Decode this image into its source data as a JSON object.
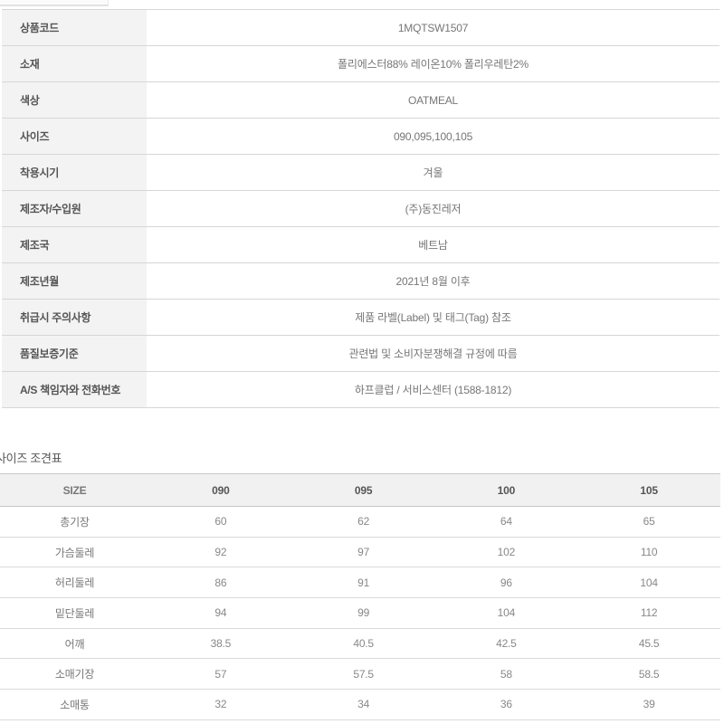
{
  "spec_table": {
    "rows": [
      {
        "label": "상품코드",
        "value": "1MQTSW1507"
      },
      {
        "label": "소재",
        "value": "폴리에스터88% 레이온10% 폴리우레탄2%"
      },
      {
        "label": "색상",
        "value": "OATMEAL"
      },
      {
        "label": "사이즈",
        "value": "090,095,100,105"
      },
      {
        "label": "착용시기",
        "value": "겨울"
      },
      {
        "label": "제조자/수입원",
        "value": "(주)동진레저"
      },
      {
        "label": "제조국",
        "value": "베트남"
      },
      {
        "label": "제조년월",
        "value": "2021년 8월 이후"
      },
      {
        "label": "취급시 주의사항",
        "value": "제품 라벨(Label) 및 태그(Tag) 참조"
      },
      {
        "label": "품질보증기준",
        "value": "관련법 및 소비자분쟁해결 규정에 따름"
      },
      {
        "label": "A/S 책임자와 전화번호",
        "value": "하프클럽 / 서비스센터 (1588-1812)"
      }
    ]
  },
  "size_chart": {
    "title": "사이즈 조견표",
    "columns": [
      "SIZE",
      "090",
      "095",
      "100",
      "105"
    ],
    "rows": [
      {
        "label": "총기장",
        "values": [
          "60",
          "62",
          "64",
          "65"
        ]
      },
      {
        "label": "가슴둘레",
        "values": [
          "92",
          "97",
          "102",
          "110"
        ]
      },
      {
        "label": "허리둘레",
        "values": [
          "86",
          "91",
          "96",
          "104"
        ]
      },
      {
        "label": "밑단둘레",
        "values": [
          "94",
          "99",
          "104",
          "112"
        ]
      },
      {
        "label": "어깨",
        "values": [
          "38.5",
          "40.5",
          "42.5",
          "45.5"
        ]
      },
      {
        "label": "소매기장",
        "values": [
          "57",
          "57.5",
          "58",
          "58.5"
        ]
      },
      {
        "label": "소매통",
        "values": [
          "32",
          "34",
          "36",
          "39"
        ]
      }
    ]
  },
  "colors": {
    "label_cell_bg": "#f3f3f3",
    "size_header_bg": "#f1f1f1",
    "row_border": "#d6d6d6",
    "label_text": "#555555",
    "value_text": "#767676"
  }
}
